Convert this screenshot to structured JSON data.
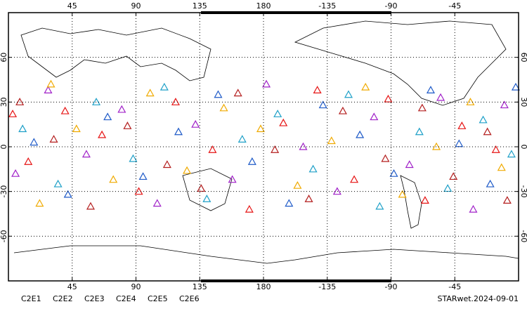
{
  "chart_data": {
    "type": "scatter",
    "xlim": [
      0,
      360
    ],
    "ylim": [
      -90,
      90
    ],
    "xticks": [
      45,
      90,
      135,
      180,
      {
        "value": 225,
        "label": "-135"
      },
      {
        "value": 270,
        "label": "-90"
      },
      {
        "value": 315,
        "label": "-45"
      }
    ],
    "yticks": [
      -60,
      -30,
      0,
      30,
      60
    ],
    "grid": true,
    "footer": "STARwet.2024-09-01",
    "series": [
      {
        "name": "C2E1",
        "color": "#1ea0c8",
        "lon": [
          10,
          35,
          62,
          88,
          110,
          140,
          165,
          190,
          215,
          240,
          262,
          290,
          310,
          335,
          355
        ],
        "lat": [
          12,
          -25,
          30,
          -8,
          40,
          -35,
          5,
          22,
          -15,
          35,
          -40,
          10,
          -28,
          18,
          -5
        ]
      },
      {
        "name": "C2E2",
        "color": "#a020c8",
        "lon": [
          5,
          28,
          55,
          80,
          105,
          132,
          158,
          182,
          208,
          232,
          258,
          283,
          305,
          328,
          350
        ],
        "lat": [
          -18,
          38,
          -5,
          25,
          -38,
          15,
          -22,
          42,
          0,
          -30,
          20,
          -12,
          33,
          -42,
          28
        ]
      },
      {
        "name": "C2E3",
        "color": "#1e5ac8",
        "lon": [
          18,
          42,
          70,
          95,
          120,
          148,
          172,
          198,
          222,
          248,
          272,
          298,
          318,
          340,
          358
        ],
        "lat": [
          3,
          -32,
          20,
          -20,
          10,
          35,
          -10,
          -38,
          28,
          8,
          -18,
          38,
          2,
          -25,
          40
        ]
      },
      {
        "name": "C2E4",
        "color": "#b41e1e",
        "lon": [
          8,
          32,
          58,
          84,
          112,
          136,
          162,
          188,
          212,
          236,
          266,
          292,
          314,
          338,
          352
        ],
        "lat": [
          30,
          5,
          -40,
          14,
          -12,
          -28,
          36,
          -2,
          -35,
          24,
          -8,
          26,
          -20,
          10,
          -36
        ]
      },
      {
        "name": "C2E5",
        "color": "#e61414",
        "lon": [
          14,
          40,
          66,
          92,
          118,
          144,
          170,
          194,
          218,
          244,
          268,
          294,
          320,
          344,
          3
        ],
        "lat": [
          -10,
          24,
          8,
          -30,
          30,
          -2,
          -42,
          16,
          38,
          -22,
          32,
          -36,
          14,
          -2,
          22
        ]
      },
      {
        "name": "C2E6",
        "color": "#f0aa00",
        "lon": [
          22,
          48,
          74,
          100,
          126,
          152,
          178,
          204,
          228,
          252,
          278,
          302,
          326,
          348,
          30
        ],
        "lat": [
          -38,
          12,
          -22,
          36,
          -16,
          26,
          12,
          -26,
          4,
          40,
          -32,
          0,
          30,
          -14,
          42
        ]
      }
    ]
  }
}
